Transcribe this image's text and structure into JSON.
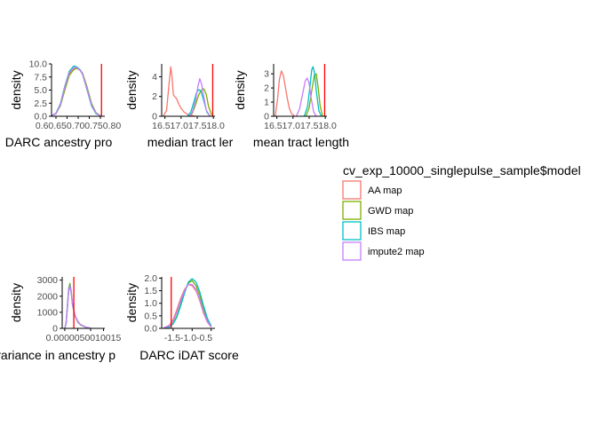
{
  "colors": {
    "AA map": "#F8766D",
    "GWD map": "#7CAE00",
    "IBS map": "#00BFC4",
    "impute2 map": "#C77CFF",
    "vline": "#FF0000",
    "axis": "#000000"
  },
  "legend": {
    "title": "cv_exp_10000_singlepulse_sample$model",
    "items": [
      "AA map",
      "GWD map",
      "IBS map",
      "impute2 map"
    ]
  },
  "chart_data": [
    {
      "type": "line",
      "xlabel": "DARC ancestry pro",
      "ylabel": "density",
      "xlim": [
        0.58,
        0.82
      ],
      "ylim": [
        0,
        10
      ],
      "yticks": [
        0.0,
        2.5,
        5.0,
        7.5,
        10.0
      ],
      "ytick_labels": [
        "0.0",
        "2.5",
        "5.0",
        "7.5",
        "10.0"
      ],
      "xticks": [
        0.6,
        0.65,
        0.7,
        0.75,
        0.8
      ],
      "xtick_labels": [
        "0.6",
        "0.65",
        "0.70",
        "0.75",
        "0.8"
      ],
      "xtick_text": "0.60.650.700.750.80",
      "vline": 0.805,
      "series": [
        {
          "name": "AA map",
          "x": [
            0.58,
            0.6,
            0.62,
            0.64,
            0.66,
            0.68,
            0.69,
            0.7,
            0.71,
            0.72,
            0.74,
            0.76,
            0.78,
            0.8
          ],
          "y": [
            0.1,
            0.5,
            2.2,
            5.5,
            8.0,
            9.0,
            9.2,
            9.0,
            8.7,
            8.0,
            5.2,
            2.2,
            0.6,
            0.1
          ]
        },
        {
          "name": "GWD map",
          "x": [
            0.58,
            0.6,
            0.62,
            0.64,
            0.66,
            0.68,
            0.69,
            0.7,
            0.71,
            0.72,
            0.74,
            0.76,
            0.78,
            0.8
          ],
          "y": [
            0.1,
            0.5,
            2.0,
            5.0,
            7.8,
            8.9,
            9.1,
            9.1,
            8.8,
            8.2,
            5.6,
            2.5,
            0.7,
            0.1
          ]
        },
        {
          "name": "IBS map",
          "x": [
            0.58,
            0.6,
            0.62,
            0.64,
            0.66,
            0.68,
            0.69,
            0.7,
            0.71,
            0.72,
            0.74,
            0.76,
            0.78,
            0.8
          ],
          "y": [
            0.1,
            0.6,
            2.4,
            5.8,
            8.6,
            9.6,
            9.5,
            9.2,
            8.8,
            8.0,
            5.0,
            2.0,
            0.5,
            0.1
          ]
        },
        {
          "name": "impute2 map",
          "x": [
            0.58,
            0.6,
            0.62,
            0.64,
            0.66,
            0.68,
            0.69,
            0.7,
            0.71,
            0.72,
            0.74,
            0.76,
            0.78,
            0.8
          ],
          "y": [
            0.1,
            0.5,
            2.2,
            5.6,
            8.3,
            9.3,
            9.3,
            9.1,
            8.7,
            8.0,
            5.2,
            2.2,
            0.6,
            0.1
          ]
        }
      ]
    },
    {
      "type": "line",
      "xlabel": "median tract ler",
      "ylabel": "density",
      "xlim": [
        16.4,
        18.05
      ],
      "ylim": [
        0,
        5.3
      ],
      "yticks": [
        0,
        2,
        4
      ],
      "ytick_labels": [
        "0",
        "2",
        "4"
      ],
      "xticks": [
        16.5,
        17.0,
        17.5,
        18.0
      ],
      "xtick_labels": [
        "16.5",
        "17.0",
        "17.5",
        "18.0"
      ],
      "xtick_text": "16.517.017.518.0",
      "vline": 17.98,
      "series": [
        {
          "name": "AA map",
          "x": [
            16.45,
            16.55,
            16.62,
            16.68,
            16.72,
            16.76,
            16.8,
            16.86,
            16.92,
            17.0,
            17.1,
            17.2,
            17.3,
            17.45
          ],
          "y": [
            0,
            0.6,
            3.0,
            5.0,
            4.0,
            2.2,
            2.0,
            1.8,
            1.3,
            0.8,
            0.4,
            0.2,
            0.1,
            0
          ]
        },
        {
          "name": "GWD map",
          "x": [
            17.25,
            17.35,
            17.45,
            17.55,
            17.62,
            17.68,
            17.72,
            17.78,
            17.85,
            17.95
          ],
          "y": [
            0,
            0.3,
            1.2,
            2.2,
            2.6,
            2.8,
            2.7,
            2.2,
            1.0,
            0.1
          ]
        },
        {
          "name": "IBS map",
          "x": [
            17.2,
            17.3,
            17.4,
            17.48,
            17.55,
            17.62,
            17.7,
            17.8,
            17.9
          ],
          "y": [
            0,
            0.4,
            1.5,
            2.4,
            2.7,
            2.5,
            1.6,
            0.4,
            0
          ]
        },
        {
          "name": "impute2 map",
          "x": [
            17.25,
            17.35,
            17.45,
            17.52,
            17.58,
            17.64,
            17.7,
            17.78,
            17.9
          ],
          "y": [
            0,
            0.4,
            1.6,
            3.0,
            3.8,
            3.2,
            2.0,
            0.6,
            0
          ]
        }
      ]
    },
    {
      "type": "line",
      "xlabel": "mean tract length",
      "ylabel": "density",
      "xlim": [
        16.4,
        18.05
      ],
      "ylim": [
        0,
        3.7
      ],
      "yticks": [
        0,
        1,
        2,
        3
      ],
      "ytick_labels": [
        "0",
        "1",
        "2",
        "3"
      ],
      "xticks": [
        16.5,
        17.0,
        17.5,
        18.0
      ],
      "xtick_labels": [
        "16.5",
        "17.0",
        "17.5",
        "18.0"
      ],
      "xtick_text": "16.517.017.518.0",
      "vline": 17.98,
      "series": [
        {
          "name": "AA map",
          "x": [
            16.45,
            16.52,
            16.58,
            16.64,
            16.7,
            16.76,
            16.82,
            16.88,
            16.95,
            17.05
          ],
          "y": [
            0,
            1.2,
            2.6,
            3.2,
            2.9,
            2.1,
            1.3,
            0.6,
            0.2,
            0
          ]
        },
        {
          "name": "GWD map",
          "x": [
            17.4,
            17.5,
            17.58,
            17.66,
            17.72,
            17.78,
            17.84,
            17.92
          ],
          "y": [
            0,
            0.6,
            1.8,
            2.9,
            3.0,
            2.0,
            0.7,
            0
          ]
        },
        {
          "name": "IBS map",
          "x": [
            17.35,
            17.45,
            17.52,
            17.58,
            17.62,
            17.67,
            17.72,
            17.8,
            17.88
          ],
          "y": [
            0,
            0.7,
            2.0,
            3.3,
            3.5,
            3.0,
            1.8,
            0.4,
            0
          ]
        },
        {
          "name": "impute2 map",
          "x": [
            17.1,
            17.2,
            17.3,
            17.38,
            17.44,
            17.5,
            17.56,
            17.64,
            17.72
          ],
          "y": [
            0,
            0.5,
            1.6,
            2.5,
            2.7,
            2.3,
            1.3,
            0.3,
            0
          ]
        }
      ]
    },
    {
      "type": "line",
      "xlabel": "variance in ancestry p",
      "ylabel": "density",
      "xlim": [
        -0.0001,
        0.00155
      ],
      "ylim": [
        0,
        3200
      ],
      "yticks": [
        0,
        1000,
        2000,
        3000
      ],
      "ytick_labels": [
        "0",
        "1000",
        "2000",
        "3000"
      ],
      "xticks": [
        0.0,
        0.0005,
        0.001,
        0.0015
      ],
      "xtick_labels": [
        "0.0000",
        "0.0005",
        "0.0010",
        "0.0015"
      ],
      "xtick_text": "0.0000050010015",
      "vline": 0.00035,
      "series": [
        {
          "name": "AA map",
          "x": [
            0.0,
            5e-05,
            0.0001,
            0.00015,
            0.0002,
            0.00025,
            0.0003,
            0.0004,
            0.0005,
            0.0006,
            0.0008,
            0.001
          ],
          "y": [
            0,
            300,
            1200,
            2300,
            2600,
            2200,
            1500,
            800,
            450,
            250,
            80,
            10
          ]
        },
        {
          "name": "GWD map",
          "x": [
            0.0,
            5e-05,
            0.0001,
            0.00015,
            0.0002,
            0.00025,
            0.0003,
            0.0004,
            0.0005,
            0.0006,
            0.0008,
            0.001
          ],
          "y": [
            0,
            350,
            1400,
            2500,
            2800,
            2300,
            1500,
            750,
            400,
            220,
            70,
            10
          ]
        },
        {
          "name": "IBS map",
          "x": [
            0.0,
            5e-05,
            0.0001,
            0.00015,
            0.0002,
            0.00025,
            0.0003,
            0.0004,
            0.0005,
            0.0006,
            0.0008,
            0.001
          ],
          "y": [
            0,
            300,
            1300,
            2400,
            2700,
            2200,
            1450,
            780,
            420,
            240,
            75,
            10
          ]
        },
        {
          "name": "impute2 map",
          "x": [
            0.0,
            5e-05,
            0.0001,
            0.00015,
            0.0002,
            0.00025,
            0.0003,
            0.0004,
            0.0005,
            0.0006,
            0.0008,
            0.001
          ],
          "y": [
            0,
            320,
            1300,
            2350,
            2650,
            2250,
            1500,
            800,
            430,
            240,
            80,
            10
          ]
        }
      ]
    },
    {
      "type": "line",
      "xlabel": "DARC iDAT score",
      "ylabel": "density",
      "xlim": [
        -1.8,
        -0.4
      ],
      "ylim": [
        0,
        2.05
      ],
      "yticks": [
        0.0,
        0.5,
        1.0,
        1.5,
        2.0
      ],
      "ytick_labels": [
        "0.0",
        "0.5",
        "1.0",
        "1.5",
        "2.0"
      ],
      "xticks": [
        -1.5,
        -1.0,
        -0.5
      ],
      "xtick_labels": [
        "-1.5",
        "-1.0",
        "-0.5"
      ],
      "xtick_text": "-1.5-1.0-0.5",
      "vline": -1.55,
      "series": [
        {
          "name": "AA map",
          "x": [
            -1.75,
            -1.6,
            -1.5,
            -1.4,
            -1.3,
            -1.2,
            -1.1,
            -1.0,
            -0.9,
            -0.8,
            -0.7,
            -0.6,
            -0.5
          ],
          "y": [
            0.02,
            0.12,
            0.35,
            0.75,
            1.2,
            1.55,
            1.75,
            1.7,
            1.5,
            1.1,
            0.6,
            0.25,
            0.05
          ]
        },
        {
          "name": "GWD map",
          "x": [
            -1.75,
            -1.6,
            -1.5,
            -1.4,
            -1.3,
            -1.2,
            -1.1,
            -1.0,
            -0.9,
            -0.8,
            -0.7,
            -0.6,
            -0.5
          ],
          "y": [
            0.01,
            0.06,
            0.2,
            0.5,
            0.95,
            1.45,
            1.8,
            1.9,
            1.7,
            1.3,
            0.8,
            0.35,
            0.08
          ]
        },
        {
          "name": "IBS map",
          "x": [
            -1.75,
            -1.6,
            -1.5,
            -1.4,
            -1.3,
            -1.2,
            -1.1,
            -1.0,
            -0.9,
            -0.8,
            -0.7,
            -0.6,
            -0.5
          ],
          "y": [
            0.01,
            0.05,
            0.18,
            0.45,
            0.9,
            1.4,
            1.85,
            1.98,
            1.85,
            1.45,
            0.9,
            0.4,
            0.1
          ]
        },
        {
          "name": "impute2 map",
          "x": [
            -1.75,
            -1.6,
            -1.5,
            -1.4,
            -1.3,
            -1.2,
            -1.1,
            -1.0,
            -0.9,
            -0.8,
            -0.7,
            -0.6,
            -0.5
          ],
          "y": [
            0.02,
            0.1,
            0.3,
            0.65,
            1.1,
            1.5,
            1.75,
            1.75,
            1.55,
            1.15,
            0.65,
            0.28,
            0.06
          ]
        }
      ]
    }
  ]
}
